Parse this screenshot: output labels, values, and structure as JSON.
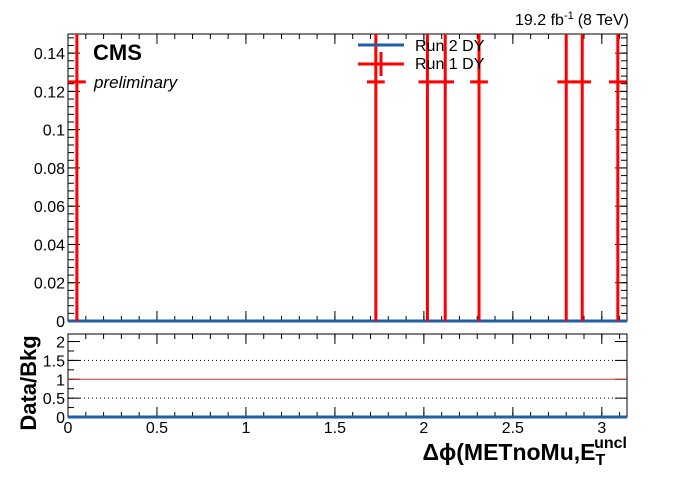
{
  "header": {
    "lumi_label": "19.2 fb",
    "lumi_exp": "-1",
    "lumi_energy": "(8 TeV)",
    "cms_label": "CMS",
    "preliminary_label": "preliminary"
  },
  "colors": {
    "run2": "#1f5ea8",
    "run1": "#ff0000",
    "axis": "#000000",
    "ratio_line": "#cc3333"
  },
  "chart_data": [
    {
      "type": "line",
      "title": "",
      "xlabel": "Δϕ(METnoMu,E",
      "xlabel_sub": "T",
      "xlabel_sup": "uncl",
      "ylabel": "",
      "xlim": [
        0,
        3.14159
      ],
      "ylim": [
        0,
        0.15
      ],
      "x_ticks": [
        "0",
        "0.5",
        "1",
        "1.5",
        "2",
        "2.5",
        "3"
      ],
      "y_ticks": [
        "0",
        "0.02",
        "0.04",
        "0.06",
        "0.08",
        "0.1",
        "0.12",
        "0.14"
      ],
      "legend": {
        "placement": "top-center",
        "entries": [
          "Run 2 DY",
          "Run 1 DY"
        ]
      },
      "series": [
        {
          "name": "Run 2 DY",
          "style": "flat-line",
          "y_value": 0
        },
        {
          "name": "Run 1 DY",
          "style": "error-bars",
          "points": [
            {
              "x": 0.05,
              "y": 0.125,
              "xerr": 0.05
            },
            {
              "x": 1.73,
              "y": 0.125,
              "xerr": 0.05
            },
            {
              "x": 2.02,
              "y": 0.125,
              "xerr": 0.05
            },
            {
              "x": 2.12,
              "y": 0.125,
              "xerr": 0.05
            },
            {
              "x": 2.31,
              "y": 0.125,
              "xerr": 0.05
            },
            {
              "x": 2.8,
              "y": 0.125,
              "xerr": 0.05
            },
            {
              "x": 2.89,
              "y": 0.125,
              "xerr": 0.05
            },
            {
              "x": 3.09,
              "y": 0.125,
              "xerr": 0.05
            }
          ]
        }
      ]
    },
    {
      "type": "line",
      "title": "",
      "xlabel": "",
      "ylabel": "Data/Bkg",
      "xlim": [
        0,
        3.14159
      ],
      "ylim": [
        0,
        2.2
      ],
      "x_ticks": [
        "0",
        "0.5",
        "1",
        "1.5",
        "2",
        "2.5",
        "3"
      ],
      "y_ticks": [
        "0",
        "0.5",
        "1",
        "1.5",
        "2"
      ],
      "grid": {
        "dotted_lines_at": [
          0.5,
          1.5
        ],
        "reference_line_at": 1
      },
      "series": [
        {
          "name": "",
          "style": "flat-line",
          "y_value": 0
        }
      ]
    }
  ]
}
